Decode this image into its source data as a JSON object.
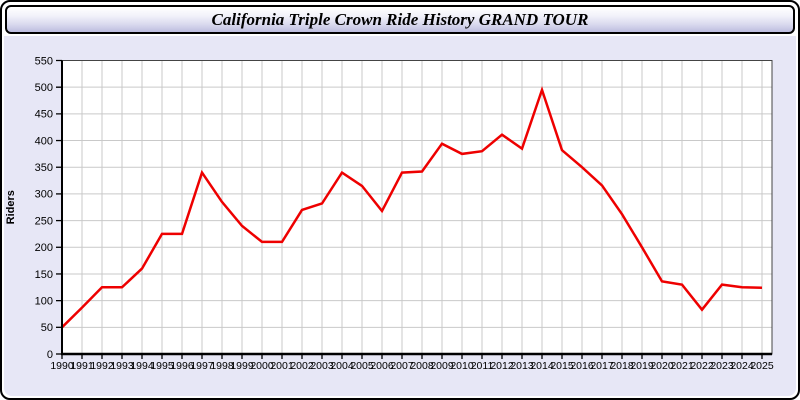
{
  "header": {
    "title": "California Triple Crown Ride History GRAND TOUR"
  },
  "chart_data": {
    "type": "line",
    "title": "California Triple Crown Ride History GRAND TOUR",
    "xlabel": "",
    "ylabel": "Riders",
    "x": [
      1990,
      1991,
      1992,
      1993,
      1994,
      1995,
      1996,
      1997,
      1998,
      1999,
      2000,
      2001,
      2002,
      2003,
      2004,
      2005,
      2006,
      2007,
      2008,
      2009,
      2010,
      2011,
      2012,
      2013,
      2014,
      2015,
      2016,
      2017,
      2018,
      2019,
      2020,
      2021,
      2022,
      2023,
      2024,
      2025
    ],
    "values": [
      50,
      87,
      125,
      125,
      160,
      225,
      225,
      340,
      285,
      240,
      210,
      210,
      270,
      282,
      340,
      315,
      268,
      340,
      342,
      394,
      375,
      380,
      411,
      385,
      495,
      382,
      350,
      316,
      262,
      200,
      136,
      130,
      83,
      130,
      125,
      124
    ],
    "ylim": [
      0,
      550
    ],
    "ytick_step": 50,
    "grid": true,
    "legend": "none",
    "line_color": "#ee0000",
    "plot_bg": "#ffffff",
    "grid_color": "#c9c9c9",
    "panel_bg": "#e7e7f6"
  }
}
